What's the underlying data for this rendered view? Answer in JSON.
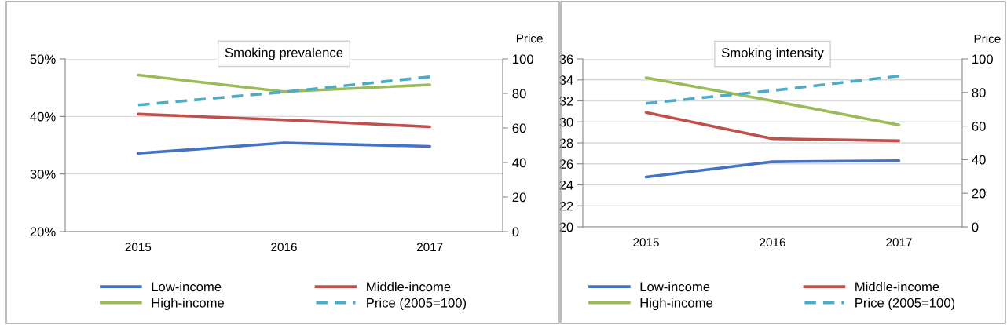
{
  "chart_data": [
    {
      "type": "line",
      "title": "Smoking prevalence",
      "y2label": "Price",
      "categories": [
        "2015",
        "2016",
        "2017"
      ],
      "series": [
        {
          "name": "Low-income",
          "color": "#4472c4",
          "values": [
            33.6,
            35.4,
            34.8
          ]
        },
        {
          "name": "Middle-income",
          "color": "#c0504d",
          "values": [
            40.4,
            39.4,
            38.2
          ]
        },
        {
          "name": "High-income",
          "color": "#9bbb59",
          "values": [
            47.2,
            44.3,
            45.5
          ]
        },
        {
          "name": "Price (2005=100)",
          "color": "#4bacc6",
          "values": [
            73.3,
            80.8,
            89.6
          ],
          "axis": "y2",
          "line_style": "dashed"
        }
      ],
      "ylim": [
        20,
        50
      ],
      "yticks": [
        {
          "value": 20,
          "label": "20%"
        },
        {
          "value": 30,
          "label": "30%"
        },
        {
          "value": 40,
          "label": "40%"
        },
        {
          "value": 50,
          "label": "50%"
        }
      ],
      "y2lim": [
        0,
        100
      ],
      "y2ticks": [
        0,
        20,
        40,
        60,
        80,
        100
      ],
      "grid": "y",
      "legend": "bottom",
      "line_style": "solid",
      "marker": "none"
    },
    {
      "type": "line",
      "title": "Smoking intensity",
      "y2label": "Price",
      "categories": [
        "2015",
        "2016",
        "2017"
      ],
      "series": [
        {
          "name": "Low-income",
          "color": "#4472c4",
          "values": [
            24.75,
            26.2,
            26.3
          ]
        },
        {
          "name": "Middle-income",
          "color": "#c0504d",
          "values": [
            30.9,
            28.4,
            28.2
          ]
        },
        {
          "name": "High-income",
          "color": "#9bbb59",
          "values": [
            34.2,
            32.0,
            29.7
          ]
        },
        {
          "name": "Price (2005=100)",
          "color": "#4bacc6",
          "values": [
            73.5,
            81.1,
            89.8
          ],
          "axis": "y2",
          "line_style": "dashed"
        }
      ],
      "ylim": [
        20,
        36
      ],
      "yticks": [
        20,
        22,
        24,
        26,
        28,
        30,
        32,
        34,
        36
      ],
      "y2lim": [
        0,
        100
      ],
      "y2ticks": [
        0,
        20,
        40,
        60,
        80,
        100
      ],
      "grid": "y",
      "legend": "bottom",
      "line_style": "solid",
      "marker": "none"
    }
  ]
}
